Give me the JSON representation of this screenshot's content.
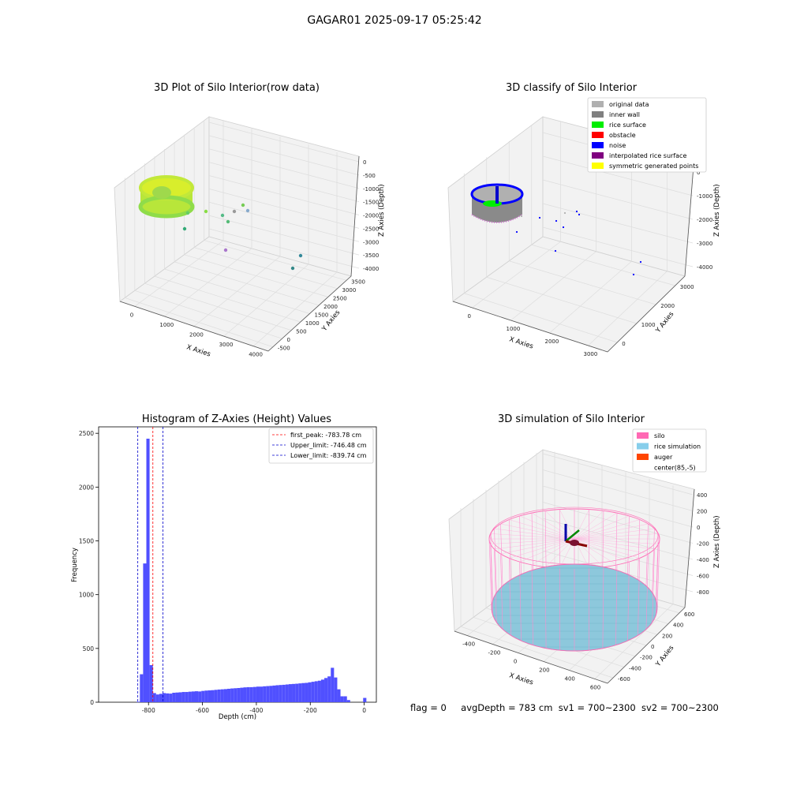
{
  "figure": {
    "suptitle": "GAGAR01 2025-09-17 05:25:42",
    "footer": {
      "flag": "flag = 0",
      "avg_depth": "avgDepth = 783 cm",
      "sv1": "sv1 = 700~2300",
      "sv2": "sv2 = 700~2300"
    }
  },
  "panels": {
    "raw": {
      "title": "3D Plot of Silo Interior(row data)",
      "xlabel": "X Axies",
      "ylabel": "Y Axies",
      "zlabel": "Z Axies (Depth)",
      "x_ticks": [
        "0",
        "1000",
        "2000",
        "3000",
        "4000"
      ],
      "y_ticks": [
        "-500",
        "0",
        "500",
        "1000",
        "1500",
        "2000",
        "2500",
        "3000",
        "3500"
      ],
      "z_ticks": [
        "0",
        "-500",
        "-1000",
        "-1500",
        "-2000",
        "-2500",
        "-3000",
        "-3500",
        "-4000"
      ]
    },
    "classify": {
      "title": "3D classify of Silo Interior",
      "xlabel": "X Axies",
      "ylabel": "Y Axies",
      "zlabel": "Z Axies (Depth)",
      "x_ticks": [
        "0",
        "1000",
        "2000",
        "3000"
      ],
      "y_ticks": [
        "0",
        "1000",
        "2000",
        "3000"
      ],
      "z_ticks": [
        "0",
        "-1000",
        "-2000",
        "-3000",
        "-4000"
      ],
      "legend": [
        {
          "label": "original data",
          "color": "#b0b0b0"
        },
        {
          "label": "inner wall",
          "color": "#808080"
        },
        {
          "label": "rice surface",
          "color": "#00ee00"
        },
        {
          "label": "obstacle",
          "color": "#ff0000"
        },
        {
          "label": "noise",
          "color": "#0000ff"
        },
        {
          "label": "interpolated rice surface",
          "color": "#800080"
        },
        {
          "label": "symmetric generated points",
          "color": "#ffff00"
        }
      ]
    },
    "simulation": {
      "title": "3D simulation of Silo Interior",
      "xlabel": "X Axies",
      "ylabel": "Y Axies",
      "zlabel": "Z Axies (Depth)",
      "x_ticks": [
        "-400",
        "-200",
        "0",
        "200",
        "400",
        "600"
      ],
      "y_ticks": [
        "-600",
        "-400",
        "-200",
        "0",
        "200",
        "400",
        "600"
      ],
      "z_ticks": [
        "400",
        "200",
        "0",
        "-200",
        "-400",
        "-600",
        "-800"
      ],
      "legend": [
        {
          "label": "silo",
          "color": "#ff69b4"
        },
        {
          "label": "rice simulation",
          "color": "#87ceeb"
        },
        {
          "label": "auger",
          "color": "#ff4500"
        },
        {
          "label": "center(85,-5)",
          "color": ""
        }
      ]
    }
  },
  "chart_data": [
    {
      "type": "histogram",
      "title": "Histogram of Z-Axies (Height) Values",
      "xlabel": "Depth (cm)",
      "ylabel": "Frequency",
      "x_ticks": [
        "-800",
        "-600",
        "-400",
        "-200",
        "0"
      ],
      "y_ticks": [
        "0",
        "500",
        "1000",
        "1500",
        "2000",
        "2500"
      ],
      "xlim": [
        -985,
        45
      ],
      "ylim": [
        0,
        2560
      ],
      "bar_color": "#5050ff",
      "bins": {
        "left_edges": [
          -844,
          -832,
          -820,
          -808,
          -796,
          -784,
          -772,
          -760,
          -748,
          -736,
          -724,
          -712,
          -700,
          -688,
          -676,
          -664,
          -652,
          -640,
          -628,
          -616,
          -604,
          -592,
          -580,
          -568,
          -556,
          -544,
          -532,
          -520,
          -508,
          -496,
          -484,
          -472,
          -460,
          -448,
          -436,
          -424,
          -412,
          -400,
          -388,
          -376,
          -364,
          -352,
          -340,
          -328,
          -316,
          -304,
          -292,
          -280,
          -268,
          -256,
          -244,
          -232,
          -220,
          -208,
          -196,
          -184,
          -172,
          -160,
          -148,
          -136,
          -124,
          -112,
          -100,
          -88,
          -76,
          -64,
          -52,
          -40,
          -28,
          -16,
          -4
        ],
        "width": 12,
        "counts": [
          5,
          260,
          1290,
          2450,
          345,
          85,
          72,
          78,
          85,
          82,
          80,
          88,
          90,
          92,
          95,
          95,
          98,
          100,
          102,
          100,
          105,
          108,
          110,
          112,
          115,
          118,
          120,
          122,
          125,
          128,
          130,
          132,
          135,
          138,
          140,
          140,
          142,
          145,
          145,
          148,
          150,
          152,
          155,
          158,
          160,
          162,
          165,
          168,
          170,
          172,
          175,
          178,
          180,
          185,
          190,
          195,
          200,
          210,
          225,
          240,
          320,
          230,
          120,
          55,
          55,
          20,
          0,
          0,
          0,
          0,
          40
        ]
      },
      "lines": [
        {
          "label": "first_peak: -783.78 cm",
          "x": -783.78,
          "color": "#ff0000"
        },
        {
          "label": "Upper_limit: -746.48 cm",
          "x": -746.48,
          "color": "#0000cc"
        },
        {
          "label": "Lower_limit: -839.74 cm",
          "x": -839.74,
          "color": "#0000cc"
        }
      ]
    }
  ]
}
